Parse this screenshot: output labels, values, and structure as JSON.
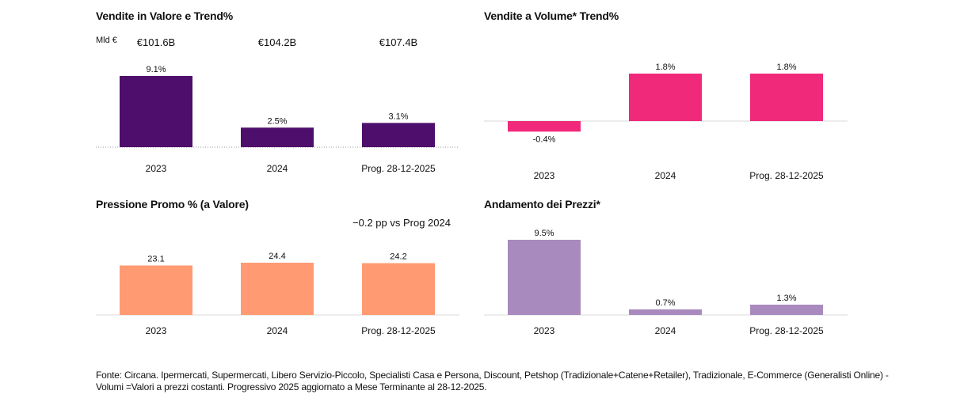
{
  "chart_data": [
    {
      "id": "vendite-valore",
      "type": "bar",
      "title": "Vendite in Valore e Trend%",
      "unit_label": "Mld €",
      "totals": [
        "€101.6B",
        "€104.2B",
        "€107.4B"
      ],
      "categories": [
        "2023",
        "2024",
        "Prog. 28-12-2025"
      ],
      "values": [
        9.1,
        2.5,
        3.1
      ],
      "value_labels": [
        "9.1%",
        "2.5%",
        "3.1%"
      ],
      "color": "#4e0e6b",
      "ylim": [
        0,
        9.1
      ],
      "baseline_dotted": true
    },
    {
      "id": "vendite-volume",
      "type": "bar",
      "title": "Vendite a Volume* Trend%",
      "categories": [
        "2023",
        "2024",
        "Prog. 28-12-2025"
      ],
      "values": [
        -0.4,
        1.8,
        1.8
      ],
      "value_labels": [
        "-0.4%",
        "1.8%",
        "1.8%"
      ],
      "color": "#f0297b",
      "ylim": [
        -0.4,
        1.8
      ]
    },
    {
      "id": "pressione-promo",
      "type": "bar",
      "title": "Pressione Promo % (a Valore)",
      "note": "−0.2 pp vs Prog 2024",
      "categories": [
        "2023",
        "2024",
        "Prog. 28-12-2025"
      ],
      "values": [
        23.1,
        24.4,
        24.2
      ],
      "value_labels": [
        "23.1",
        "24.4",
        "24.2"
      ],
      "color": "#ff9a73",
      "ylim": [
        0,
        24.4
      ]
    },
    {
      "id": "andamento-prezzi",
      "type": "bar",
      "title": "Andamento dei Prezzi*",
      "categories": [
        "2023",
        "2024",
        "Prog. 28-12-2025"
      ],
      "values": [
        9.5,
        0.7,
        1.3
      ],
      "value_labels": [
        "9.5%",
        "0.7%",
        "1.3%"
      ],
      "color": "#a98abf",
      "ylim": [
        0,
        9.5
      ]
    }
  ],
  "footer": {
    "line1": "Fonte: Circana. Ipermercati, Supermercati, Libero Servizio-Piccolo, Specialisti Casa e Persona, Discount, Petshop (Tradizionale+Catene+Retailer), Tradizionale, E-Commerce (Generalisti Online) -",
    "line2": "Volumi =Valori a prezzi costanti. Progressivo 2025 aggiornato a Mese Terminante al 28-12-2025."
  }
}
